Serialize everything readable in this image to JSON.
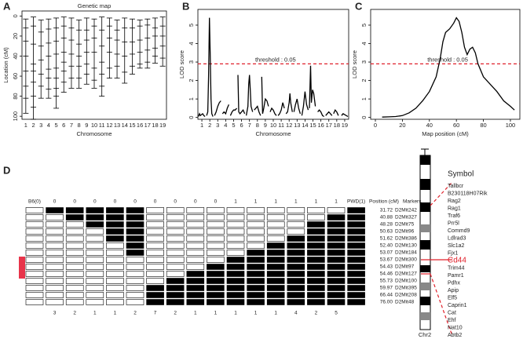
{
  "chart_data": [
    {
      "type": "genetic_map",
      "title": "Genetic map",
      "xlabel": "Chromosome",
      "ylabel": "Location (cM)",
      "categories": [
        "1",
        "2",
        "3",
        "4",
        "5",
        "6",
        "7",
        "8",
        "9",
        "10",
        "11",
        "12",
        "13",
        "14",
        "15",
        "16",
        "17",
        "18",
        "19"
      ],
      "markers": [
        [
          3,
          12,
          25,
          40,
          55,
          70,
          82,
          97
        ],
        [
          1,
          10,
          28,
          48,
          55,
          66,
          80,
          91,
          103
        ],
        [
          4,
          16,
          30,
          44,
          58,
          70,
          82
        ],
        [
          3,
          13,
          27,
          40,
          53,
          62,
          73,
          82
        ],
        [
          2,
          12,
          25,
          38,
          52,
          62,
          72,
          80,
          92
        ],
        [
          1,
          10,
          22,
          36,
          46,
          55,
          66,
          76
        ],
        [
          2,
          12,
          24,
          38,
          50,
          62,
          72
        ],
        [
          4,
          14,
          28,
          40,
          50,
          62,
          72
        ],
        [
          2,
          14,
          24,
          36,
          48,
          58,
          68
        ],
        [
          3,
          10,
          22,
          36,
          52,
          64,
          72
        ],
        [
          1,
          14,
          30,
          46,
          58,
          70,
          80
        ],
        [
          2,
          10,
          22,
          36,
          52,
          62
        ],
        [
          4,
          14,
          24,
          38,
          50,
          62
        ],
        [
          2,
          12,
          26,
          40,
          56,
          67
        ],
        [
          3,
          12,
          26,
          38,
          50,
          58
        ],
        [
          4,
          10,
          24,
          36,
          48,
          52
        ],
        [
          3,
          9,
          22,
          34,
          46,
          52
        ],
        [
          2,
          12,
          20,
          32,
          40,
          47
        ],
        [
          1,
          10,
          20,
          30,
          42,
          50
        ]
      ],
      "ylim": [
        103,
        -5
      ],
      "yticks": [
        0,
        20,
        40,
        60,
        80,
        100
      ],
      "color": "#000000"
    },
    {
      "type": "line",
      "xlabel": "Chromosome",
      "ylabel": "LOD score",
      "x": [
        0.55,
        0.7,
        0.8,
        0.95,
        1.1,
        1.25,
        1.4,
        null,
        1.6,
        1.75,
        1.85,
        1.95,
        2.05,
        2.15,
        2.25,
        2.4,
        null,
        2.6,
        2.8,
        3.0,
        3.2,
        3.4,
        null,
        3.6,
        3.8,
        4.0,
        4.2,
        4.4,
        null,
        4.6,
        4.8,
        5.0,
        5.2,
        5.4,
        null,
        5.55,
        5.65,
        5.8,
        6.0,
        6.2,
        6.4,
        null,
        6.6,
        6.8,
        6.9,
        7.0,
        7.1,
        7.2,
        7.4,
        null,
        7.6,
        7.8,
        8.0,
        8.2,
        8.4,
        null,
        8.55,
        8.65,
        8.8,
        9.0,
        9.2,
        9.4,
        null,
        9.6,
        9.8,
        10.0,
        10.2,
        10.4,
        null,
        10.6,
        10.8,
        11.0,
        11.2,
        11.4,
        null,
        11.6,
        11.8,
        12.0,
        12.1,
        12.2,
        12.4,
        null,
        12.6,
        12.8,
        13.0,
        13.2,
        13.4,
        null,
        13.6,
        13.8,
        14.0,
        14.2,
        14.4,
        null,
        14.55,
        14.7,
        14.8,
        14.95,
        15.1,
        15.3,
        null,
        15.6,
        15.8,
        16.0,
        16.2,
        16.4,
        null,
        16.6,
        16.8,
        17.0,
        17.2,
        17.4,
        null,
        17.6,
        17.8,
        18.0,
        18.2,
        null,
        18.6,
        18.8,
        19.0,
        19.2,
        19.4
      ],
      "values": [
        0.05,
        0.2,
        0.1,
        0.15,
        0.2,
        0.1,
        0.05,
        null,
        0.1,
        0.3,
        2.2,
        5.4,
        3.4,
        1.0,
        0.2,
        0.05,
        null,
        0.1,
        0.3,
        0.6,
        0.8,
        0.9,
        null,
        0.2,
        0.3,
        0.2,
        0.5,
        0.7,
        null,
        0.1,
        0.3,
        0.4,
        0.4,
        0.5,
        null,
        2.3,
        0.3,
        0.2,
        0.3,
        0.4,
        0.2,
        null,
        0.1,
        0.6,
        1.8,
        2.3,
        1.5,
        0.6,
        0.3,
        null,
        0.4,
        0.5,
        0.6,
        0.3,
        0.1,
        null,
        2.2,
        0.2,
        0.5,
        1.0,
        0.9,
        0.6,
        null,
        0.3,
        0.5,
        0.4,
        0.2,
        0.1,
        null,
        0.1,
        0.2,
        0.4,
        0.8,
        0.5,
        null,
        0.2,
        0.3,
        0.8,
        1.3,
        0.8,
        0.3,
        null,
        0.3,
        0.7,
        1.0,
        0.5,
        0.2,
        null,
        0.1,
        0.6,
        1.4,
        0.7,
        0.4,
        null,
        0.5,
        2.8,
        0.8,
        1.5,
        1.3,
        0.6,
        null,
        0.3,
        0.4,
        0.3,
        0.1,
        0.05,
        null,
        0.1,
        0.2,
        0.3,
        0.2,
        0.1,
        null,
        0.2,
        0.4,
        0.3,
        0.1,
        null,
        0.1,
        0.2,
        0.15,
        0.1,
        0.05
      ],
      "xlim": [
        0.5,
        19.5
      ],
      "xticks": [
        1,
        2,
        3,
        4,
        5,
        6,
        7,
        8,
        9,
        10,
        11,
        12,
        13,
        14,
        15,
        16,
        17,
        18,
        19
      ],
      "ylim": [
        -0.1,
        5.85
      ],
      "yticks": [
        0,
        1,
        2,
        3,
        4,
        5
      ],
      "threshold": 2.9,
      "threshold_label": "threshold : 0.05",
      "threshold_color": "#e0202a",
      "color": "#000000"
    },
    {
      "type": "line",
      "xlabel": "Map position (cM)",
      "ylabel": "LOD score",
      "x": [
        5,
        10,
        15,
        20,
        25,
        30,
        35,
        40,
        45,
        48,
        50,
        52,
        55,
        58,
        60,
        62,
        64,
        66,
        68,
        70,
        72,
        74,
        76,
        80,
        85,
        90,
        95,
        100,
        103
      ],
      "values": [
        0.02,
        0.03,
        0.05,
        0.1,
        0.25,
        0.5,
        0.9,
        1.4,
        2.2,
        3.2,
        4.1,
        4.6,
        4.8,
        5.1,
        5.4,
        5.2,
        4.6,
        3.8,
        3.4,
        3.7,
        3.8,
        3.5,
        2.9,
        2.2,
        1.8,
        1.4,
        0.9,
        0.6,
        0.4
      ],
      "xlim": [
        -3.5,
        107
      ],
      "xticks": [
        0,
        20,
        40,
        60,
        80,
        100
      ],
      "ylim": [
        -0.1,
        5.85
      ],
      "yticks": [
        0,
        1,
        2,
        3,
        4,
        5
      ],
      "threshold": 2.9,
      "threshold_label": "threshold : 0.05",
      "threshold_color": "#e0202a",
      "color": "#000000"
    }
  ],
  "panel_labels": [
    "A",
    "B",
    "C",
    "D"
  ],
  "haplotype": {
    "column_headers": [
      "B6(0)",
      "0",
      "0",
      "0",
      "0",
      "0",
      "0",
      "0",
      "0",
      "0",
      "1",
      "1",
      "1",
      "1",
      "1",
      "1",
      "PWD(1)"
    ],
    "counts": [
      3,
      2,
      1,
      1,
      2,
      7,
      2,
      1,
      1,
      1,
      1,
      1,
      4,
      2,
      5
    ],
    "position_header": "Position (cM)",
    "marker_header": "Markers",
    "positions": [
      "31.72",
      "40.88",
      "48.28",
      "50.63",
      "51.62",
      "52.40",
      "53.07",
      "53.67",
      "54.43",
      "54.46",
      "55.73",
      "59.97",
      "66.44",
      "76.00"
    ],
    "markers": [
      "D2Mit242",
      "D2Mit327",
      "D2Mit75",
      "D2Mit96",
      "D2Mit386",
      "D2Mit130",
      "D2Mit184",
      "D2Mit300",
      "D2Mit97",
      "D2Mit127",
      "D2Mit100",
      "D2Mit395",
      "D2Mit208",
      "D2Mit48"
    ],
    "genotypes": [
      [
        0,
        1,
        1,
        1,
        1,
        1,
        0,
        0,
        0,
        0,
        0,
        0,
        0,
        0,
        0,
        0,
        1
      ],
      [
        0,
        0,
        1,
        1,
        1,
        1,
        0,
        0,
        0,
        0,
        0,
        0,
        0,
        0,
        0,
        1,
        1
      ],
      [
        0,
        0,
        0,
        1,
        1,
        1,
        0,
        0,
        0,
        0,
        0,
        0,
        0,
        0,
        1,
        1,
        1
      ],
      [
        0,
        0,
        0,
        0,
        1,
        1,
        0,
        0,
        0,
        0,
        0,
        0,
        0,
        0,
        1,
        1,
        1
      ],
      [
        0,
        0,
        0,
        0,
        1,
        1,
        0,
        0,
        0,
        0,
        0,
        0,
        0,
        1,
        1,
        1,
        1
      ],
      [
        0,
        0,
        0,
        0,
        0,
        1,
        0,
        0,
        0,
        0,
        0,
        0,
        1,
        1,
        1,
        1,
        1
      ],
      [
        0,
        0,
        0,
        0,
        0,
        1,
        0,
        0,
        0,
        0,
        0,
        1,
        1,
        1,
        1,
        1,
        1
      ],
      [
        0,
        0,
        0,
        0,
        0,
        0,
        0,
        0,
        0,
        0,
        1,
        1,
        1,
        1,
        1,
        1,
        1
      ],
      [
        0,
        0,
        0,
        0,
        0,
        0,
        0,
        0,
        0,
        1,
        1,
        1,
        1,
        1,
        1,
        1,
        1
      ],
      [
        0,
        0,
        0,
        0,
        0,
        0,
        0,
        0,
        1,
        1,
        1,
        1,
        1,
        1,
        1,
        1,
        1
      ],
      [
        0,
        0,
        0,
        0,
        0,
        0,
        0,
        1,
        1,
        1,
        1,
        1,
        1,
        1,
        1,
        1,
        1
      ],
      [
        0,
        0,
        0,
        0,
        0,
        0,
        1,
        1,
        1,
        1,
        1,
        1,
        1,
        1,
        1,
        1,
        1
      ],
      [
        0,
        0,
        0,
        0,
        0,
        0,
        1,
        1,
        1,
        1,
        1,
        1,
        1,
        1,
        1,
        1,
        1
      ],
      [
        0,
        0,
        0,
        0,
        0,
        0,
        1,
        1,
        1,
        1,
        1,
        1,
        1,
        1,
        1,
        1,
        1
      ]
    ]
  },
  "chromosome": {
    "label": "Chr2",
    "symbol_header": "Symbol",
    "symbols": [
      "Tallbcr",
      "B230118H07Rik",
      "Rag2",
      "Rag1",
      "Traf6",
      "Prr5l",
      "Commd9",
      "Ldlrad3",
      "Slc1a2",
      "Fjx1",
      "Cd44",
      "Trim44",
      "Pamr1",
      "Pdhx",
      "Apip",
      "Elf5",
      "Caprin1",
      "Cat",
      "Ehf",
      "Nat10",
      "Abtb2"
    ],
    "highlight_index": 10,
    "highlight_color": "#e0202a"
  }
}
